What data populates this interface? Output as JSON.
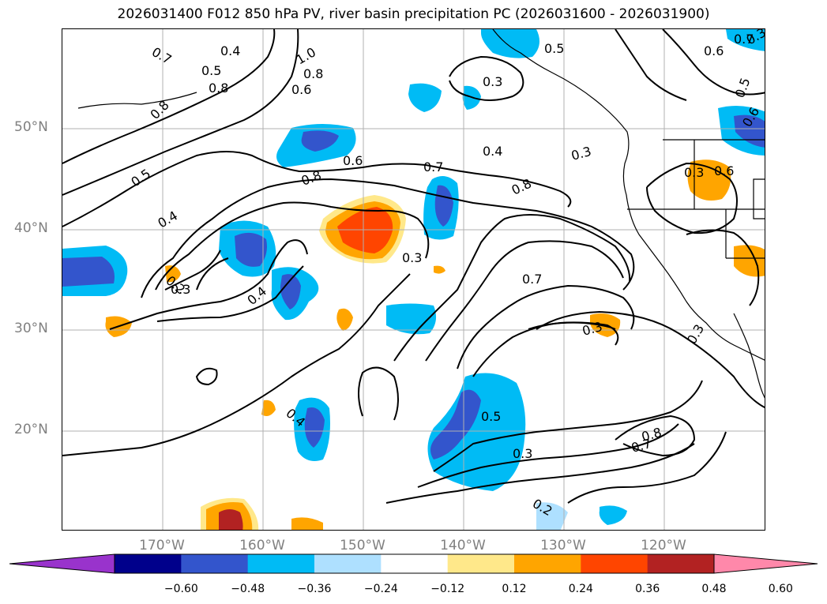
{
  "title": "2026031400 F012 850 hPa PV, river basin precipitation PC (2026031600 - 2026031900)",
  "lat_labels": [
    "50°N",
    "40°N",
    "30°N",
    "20°N"
  ],
  "lon_labels": [
    "170°W",
    "160°W",
    "150°W",
    "140°W",
    "130°W",
    "120°W"
  ],
  "colorbar": {
    "ticks": [
      "−0.60",
      "−0.48",
      "−0.36",
      "−0.24",
      "−0.12",
      "0.12",
      "0.24",
      "0.36",
      "0.48",
      "0.60"
    ],
    "colors": [
      "#9933cc",
      "#00008b",
      "#3355cc",
      "#00bbf5",
      "#aee0ff",
      "#ffffff",
      "#ffe88a",
      "#ffa500",
      "#ff4500",
      "#b22222",
      "#ff88aa"
    ]
  },
  "contour_labels": [
    "0.7",
    "0.4",
    "0.5",
    "0.8",
    "1.0",
    "0.8",
    "0.6",
    "0.8",
    "0.5",
    "0.4",
    "0.2",
    "0.4",
    "0.6",
    "0.8",
    "0.7",
    "0.4",
    "0.3",
    "0.3",
    "0.8",
    "0.3",
    "0.7",
    "0.3",
    "0.3",
    "0.5",
    "0.3",
    "0.4",
    "0.5",
    "0.7",
    "0.6",
    "0.5",
    "0.6",
    "0.3",
    "0.6",
    "0.3",
    "0.8",
    "0.7",
    "0.2",
    "0.3"
  ]
}
